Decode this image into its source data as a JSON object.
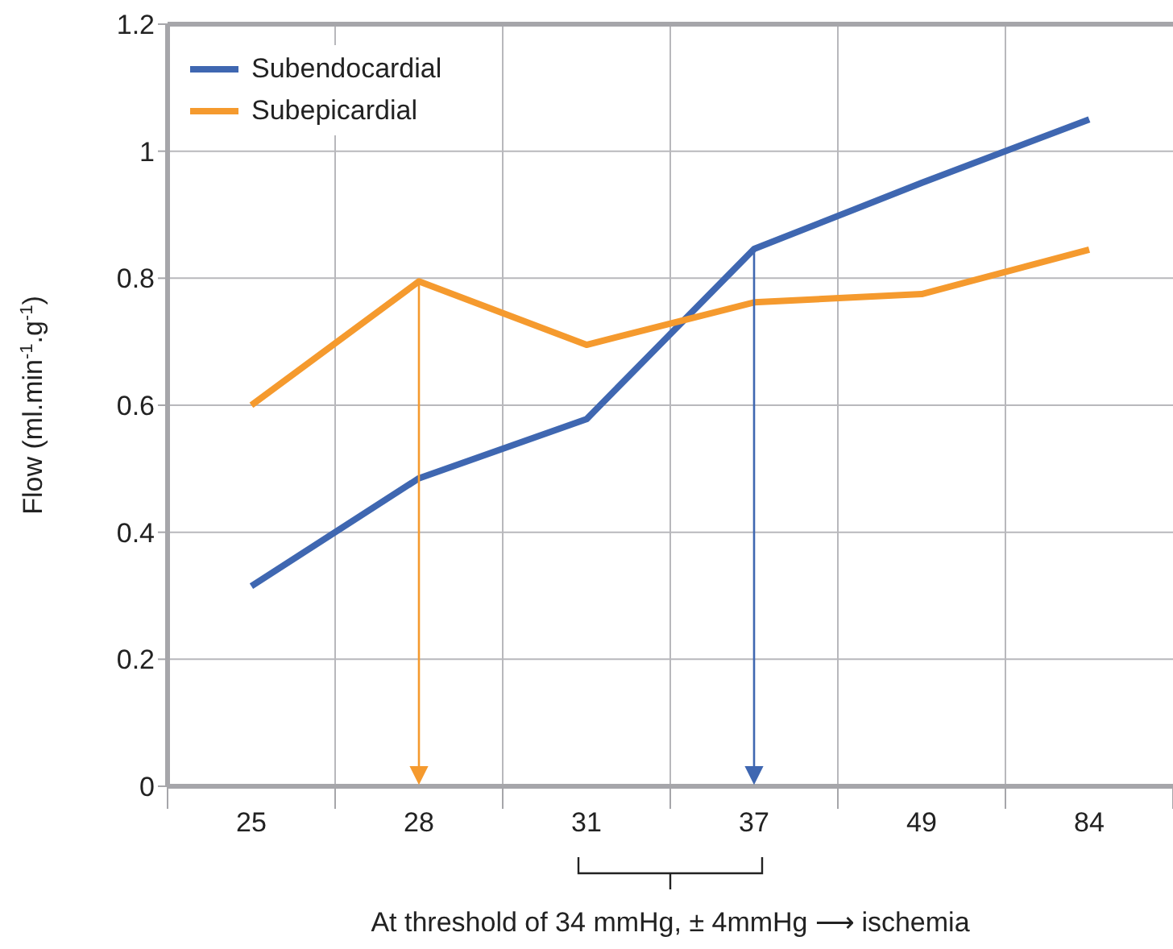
{
  "chart_data": {
    "type": "line",
    "ylabel": "Flow (ml.min$^{-1}$.g$^{-1}$)",
    "categories": [
      "25",
      "28",
      "31",
      "37",
      "49",
      "84"
    ],
    "series": [
      {
        "name": "Subendocardial",
        "color": "#3f67b1",
        "values": [
          0.315,
          0.485,
          0.578,
          0.846,
          0.95,
          1.05
        ]
      },
      {
        "name": "Subepicardial",
        "color": "#f59a2e",
        "values": [
          0.6,
          0.795,
          0.695,
          0.762,
          0.775,
          0.845
        ]
      }
    ],
    "ylim": [
      0,
      1.2
    ],
    "yticks": [
      0,
      0.2,
      0.4,
      0.6,
      0.8,
      1,
      1.2
    ],
    "grid": true,
    "legend": "top left",
    "marker": "none",
    "line_style": "solid",
    "annotations": [
      "At threshold of 34 mmHg, ± 4mmHg ⟶ ischemia"
    ]
  }
}
